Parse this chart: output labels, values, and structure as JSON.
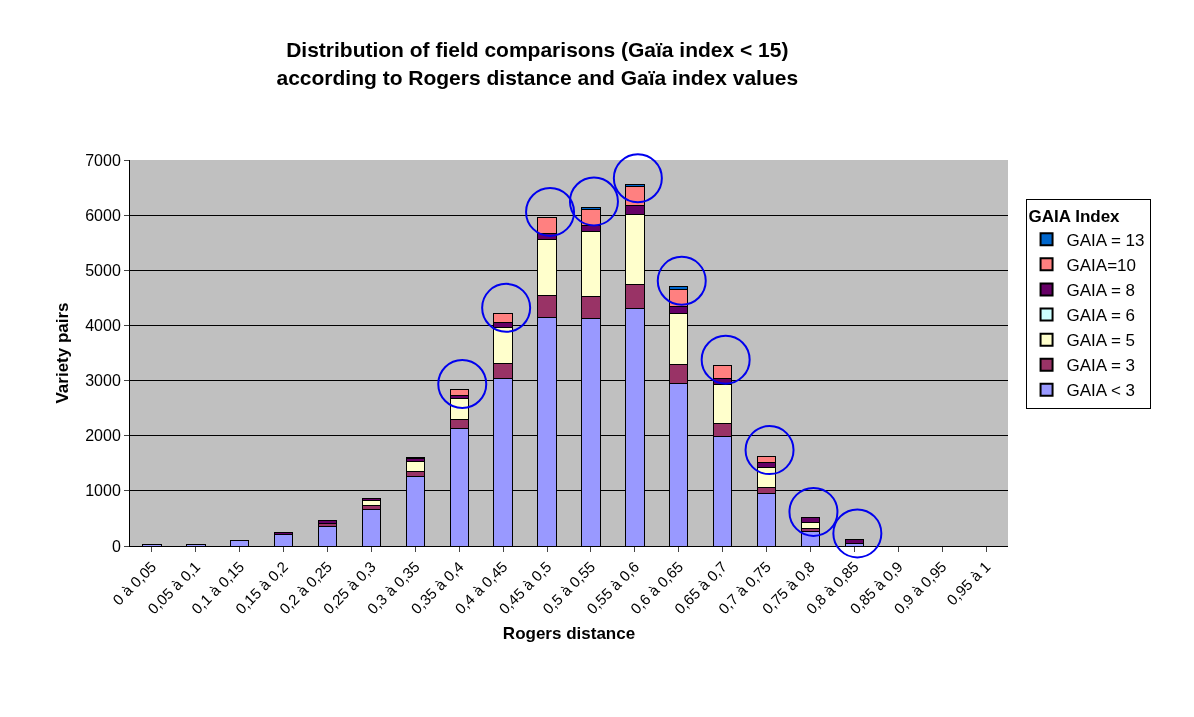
{
  "chart_data": {
    "type": "bar",
    "title": "Distribution of field comparisons (Gaïa index < 15)\naccording to Rogers distance and Gaïa index values",
    "xlabel": "Rogers distance",
    "ylabel": "Variety pairs",
    "legend_title": "GAIA Index",
    "categories": [
      "0 à 0,05",
      "0,05 à 0,1",
      "0,1 à 0,15",
      "0,15 à 0,2",
      "0,2 à 0,25",
      "0,25 à 0,3",
      "0,3 à 0,35",
      "0,35 à 0,4",
      "0,4 à 0,45",
      "0,45 à 0,5",
      "0,5 à 0,55",
      "0,55 à 0,6",
      "0,6 à 0,65",
      "0,65 à 0,7",
      "0,7 à 0,75",
      "0,75 à 0,8",
      "0,8 à 0,85",
      "0,85 à 0,9",
      "0,9 à 0,95",
      "0,95 à 1"
    ],
    "stacked": true,
    "series": [
      {
        "name": "GAIA < 3",
        "color": "#9999ff",
        "values": [
          20,
          20,
          100,
          200,
          360,
          670,
          1260,
          2130,
          3030,
          4150,
          4120,
          4300,
          2940,
          1980,
          950,
          270,
          50,
          0,
          0,
          0
        ]
      },
      {
        "name": "GAIA = 3",
        "color": "#993366",
        "values": [
          0,
          0,
          0,
          0,
          50,
          70,
          90,
          170,
          280,
          400,
          400,
          440,
          350,
          240,
          120,
          50,
          0,
          0,
          0,
          0
        ]
      },
      {
        "name": "GAIA = 5",
        "color": "#ffffcc",
        "values": [
          0,
          0,
          0,
          0,
          0,
          90,
          180,
          380,
          660,
          1000,
          1180,
          1280,
          920,
          710,
          360,
          110,
          0,
          0,
          0,
          0
        ]
      },
      {
        "name": "GAIA = 6",
        "color": "#ccffff",
        "values": [
          0,
          0,
          0,
          0,
          0,
          0,
          0,
          0,
          0,
          0,
          0,
          0,
          0,
          0,
          0,
          0,
          0,
          0,
          0,
          0
        ]
      },
      {
        "name": "GAIA = 8",
        "color": "#660066",
        "values": [
          null,
          null,
          0,
          50,
          60,
          40,
          50,
          50,
          90,
          120,
          120,
          150,
          130,
          100,
          90,
          80,
          70,
          0,
          0,
          0
        ]
      },
      {
        "name": "GAIA=10",
        "color": "#ff8080",
        "values": [
          0,
          0,
          0,
          0,
          0,
          0,
          0,
          100,
          150,
          280,
          280,
          350,
          320,
          240,
          110,
          0,
          0,
          0,
          0,
          0
        ]
      },
      {
        "name": "GAIA = 13",
        "color": "#0066cc",
        "values": [
          0,
          0,
          0,
          0,
          0,
          0,
          30,
          0,
          0,
          0,
          40,
          40,
          40,
          0,
          0,
          0,
          0,
          0,
          0,
          0
        ]
      }
    ],
    "ylim": [
      0,
      7000
    ],
    "yticks": [
      0,
      1000,
      2000,
      3000,
      4000,
      5000,
      6000,
      7000
    ],
    "grid": "y",
    "legend": "right"
  }
}
